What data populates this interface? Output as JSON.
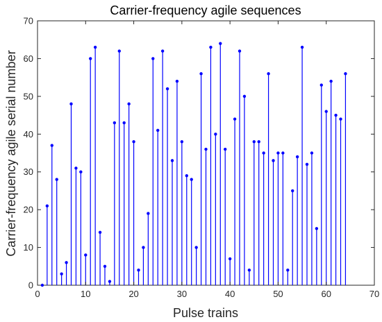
{
  "chart_data": {
    "type": "stem",
    "title": "Carrier-frequency agile sequences",
    "xlabel": "Pulse trains",
    "ylabel": "Carrier-frequency agile serial number",
    "xlim": [
      0,
      70
    ],
    "ylim": [
      0,
      70
    ],
    "xticks": [
      0,
      10,
      20,
      30,
      40,
      50,
      60,
      70
    ],
    "yticks": [
      0,
      10,
      20,
      30,
      40,
      50,
      60,
      70
    ],
    "grid": false,
    "legend": "none",
    "color": "#0000ff",
    "x": [
      1,
      2,
      3,
      4,
      5,
      6,
      7,
      8,
      9,
      10,
      11,
      12,
      13,
      14,
      15,
      16,
      17,
      18,
      19,
      20,
      21,
      22,
      23,
      24,
      25,
      26,
      27,
      28,
      29,
      30,
      31,
      32,
      33,
      34,
      35,
      36,
      37,
      38,
      39,
      40,
      41,
      42,
      43,
      44,
      45,
      46,
      47,
      48,
      49,
      50,
      51,
      52,
      53,
      54,
      55,
      56,
      57,
      58,
      59,
      60,
      61,
      62,
      63,
      64
    ],
    "values": [
      0,
      21,
      37,
      28,
      3,
      6,
      48,
      31,
      30,
      8,
      60,
      63,
      14,
      5,
      1,
      43,
      62,
      43,
      48,
      38,
      4,
      10,
      19,
      60,
      41,
      62,
      52,
      33,
      54,
      38,
      29,
      28,
      10,
      56,
      36,
      63,
      40,
      64,
      36,
      7,
      44,
      62,
      50,
      4,
      38,
      38,
      35,
      56,
      33,
      35,
      35,
      4,
      25,
      34,
      63,
      32,
      35,
      15,
      53,
      46,
      54,
      45,
      44,
      56
    ]
  }
}
